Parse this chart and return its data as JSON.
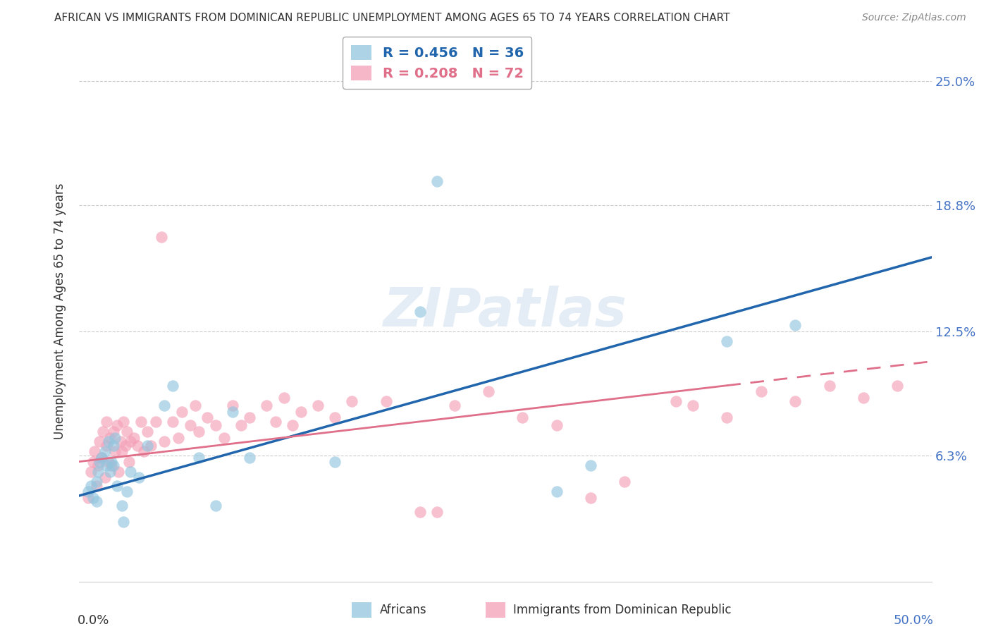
{
  "title": "AFRICAN VS IMMIGRANTS FROM DOMINICAN REPUBLIC UNEMPLOYMENT AMONG AGES 65 TO 74 YEARS CORRELATION CHART",
  "source": "Source: ZipAtlas.com",
  "ylabel": "Unemployment Among Ages 65 to 74 years",
  "ytick_values": [
    0.063,
    0.125,
    0.188,
    0.25
  ],
  "ytick_labels": [
    "6.3%",
    "12.5%",
    "18.8%",
    "25.0%"
  ],
  "xlim": [
    0.0,
    0.5
  ],
  "ylim": [
    0.0,
    0.27
  ],
  "series1_label": "Africans",
  "series2_label": "Immigrants from Dominican Republic",
  "series1_R": "0.456",
  "series1_N": "36",
  "series2_R": "0.208",
  "series2_N": "72",
  "series1_color": "#92c5de",
  "series2_color": "#f4a0b8",
  "line1_color": "#2166ac",
  "line2_color": "#e0708a",
  "watermark": "ZIPatlas",
  "africans_x": [
    0.005,
    0.007,
    0.008,
    0.01,
    0.01,
    0.011,
    0.012,
    0.013,
    0.015,
    0.016,
    0.017,
    0.018,
    0.019,
    0.02,
    0.02,
    0.021,
    0.022,
    0.025,
    0.026,
    0.028,
    0.03,
    0.035,
    0.04,
    0.05,
    0.055,
    0.07,
    0.08,
    0.09,
    0.1,
    0.15,
    0.2,
    0.21,
    0.28,
    0.3,
    0.38,
    0.42
  ],
  "africans_y": [
    0.045,
    0.048,
    0.042,
    0.05,
    0.04,
    0.055,
    0.06,
    0.062,
    0.065,
    0.058,
    0.07,
    0.055,
    0.06,
    0.068,
    0.058,
    0.072,
    0.048,
    0.038,
    0.03,
    0.045,
    0.055,
    0.052,
    0.068,
    0.088,
    0.098,
    0.062,
    0.038,
    0.085,
    0.062,
    0.06,
    0.135,
    0.2,
    0.045,
    0.058,
    0.12,
    0.128
  ],
  "domrep_x": [
    0.005,
    0.007,
    0.008,
    0.009,
    0.01,
    0.011,
    0.012,
    0.013,
    0.014,
    0.015,
    0.016,
    0.016,
    0.017,
    0.018,
    0.019,
    0.02,
    0.021,
    0.022,
    0.023,
    0.024,
    0.025,
    0.026,
    0.027,
    0.028,
    0.029,
    0.03,
    0.032,
    0.034,
    0.036,
    0.038,
    0.04,
    0.042,
    0.045,
    0.048,
    0.05,
    0.055,
    0.058,
    0.06,
    0.065,
    0.068,
    0.07,
    0.075,
    0.08,
    0.085,
    0.09,
    0.095,
    0.1,
    0.11,
    0.115,
    0.12,
    0.125,
    0.13,
    0.14,
    0.15,
    0.16,
    0.18,
    0.2,
    0.21,
    0.22,
    0.24,
    0.26,
    0.28,
    0.3,
    0.32,
    0.35,
    0.36,
    0.38,
    0.4,
    0.42,
    0.44,
    0.46,
    0.48
  ],
  "domrep_y": [
    0.042,
    0.055,
    0.06,
    0.065,
    0.048,
    0.058,
    0.07,
    0.062,
    0.075,
    0.052,
    0.068,
    0.08,
    0.06,
    0.072,
    0.058,
    0.075,
    0.065,
    0.078,
    0.055,
    0.07,
    0.065,
    0.08,
    0.068,
    0.075,
    0.06,
    0.07,
    0.072,
    0.068,
    0.08,
    0.065,
    0.075,
    0.068,
    0.08,
    0.172,
    0.07,
    0.08,
    0.072,
    0.085,
    0.078,
    0.088,
    0.075,
    0.082,
    0.078,
    0.072,
    0.088,
    0.078,
    0.082,
    0.088,
    0.08,
    0.092,
    0.078,
    0.085,
    0.088,
    0.082,
    0.09,
    0.09,
    0.035,
    0.035,
    0.088,
    0.095,
    0.082,
    0.078,
    0.042,
    0.05,
    0.09,
    0.088,
    0.082,
    0.095,
    0.09,
    0.098,
    0.092,
    0.098
  ],
  "line1_x0": 0.0,
  "line1_y0": 0.043,
  "line1_x1": 0.5,
  "line1_y1": 0.162,
  "line2_x0": 0.0,
  "line2_y0": 0.06,
  "line2_x1": 0.5,
  "line2_y1": 0.11,
  "line2_dash_start": 0.38
}
